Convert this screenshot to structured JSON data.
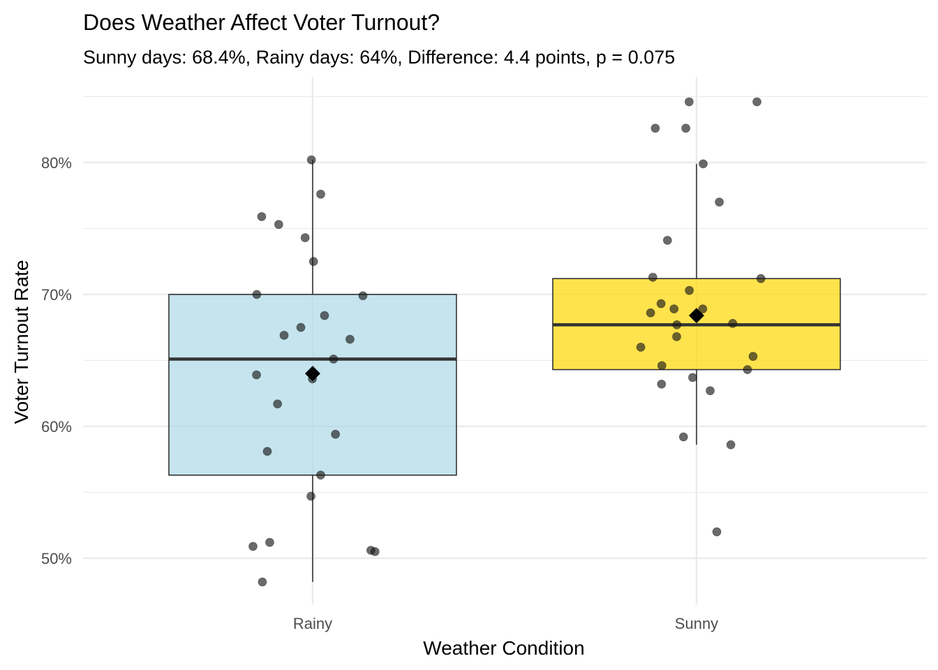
{
  "chart_data": {
    "type": "box",
    "title": "Does Weather Affect Voter Turnout?",
    "subtitle": "Sunny days: 68.4%, Rainy days: 64%, Difference: 4.4 points, p = 0.075",
    "xlabel": "Weather Condition",
    "ylabel": "Voter Turnout Rate",
    "categories": [
      "Rainy",
      "Sunny"
    ],
    "ylim": [
      0.465,
      0.865
    ],
    "y_ticks": [
      0.5,
      0.6,
      0.7,
      0.8
    ],
    "y_tick_labels": [
      "50%",
      "60%",
      "70%",
      "80%"
    ],
    "grid": true,
    "legend": "none",
    "colors": {
      "Rainy": "#add8e6",
      "Sunny": "#ffd700",
      "points": "#1a1a1a",
      "mean_marker": "#000000",
      "grid": "#ebebeb"
    },
    "boxes": [
      {
        "category": "Rainy",
        "min": 0.482,
        "q1": 0.563,
        "median": 0.651,
        "q3": 0.7,
        "max": 0.802,
        "mean": 0.64
      },
      {
        "category": "Sunny",
        "min": 0.586,
        "q1": 0.643,
        "median": 0.677,
        "q3": 0.712,
        "max": 0.799,
        "mean": 0.684
      }
    ],
    "points": [
      {
        "category": "Rainy",
        "values": [
          0.802,
          0.776,
          0.759,
          0.753,
          0.743,
          0.725,
          0.7,
          0.699,
          0.684,
          0.675,
          0.669,
          0.666,
          0.651,
          0.639,
          0.636,
          0.617,
          0.594,
          0.581,
          0.563,
          0.547,
          0.512,
          0.509,
          0.506,
          0.505,
          0.482
        ]
      },
      {
        "category": "Sunny",
        "values": [
          0.846,
          0.846,
          0.826,
          0.826,
          0.799,
          0.77,
          0.741,
          0.713,
          0.712,
          0.703,
          0.693,
          0.689,
          0.689,
          0.686,
          0.678,
          0.677,
          0.668,
          0.66,
          0.653,
          0.646,
          0.643,
          0.637,
          0.632,
          0.627,
          0.592,
          0.586,
          0.52
        ]
      }
    ]
  }
}
